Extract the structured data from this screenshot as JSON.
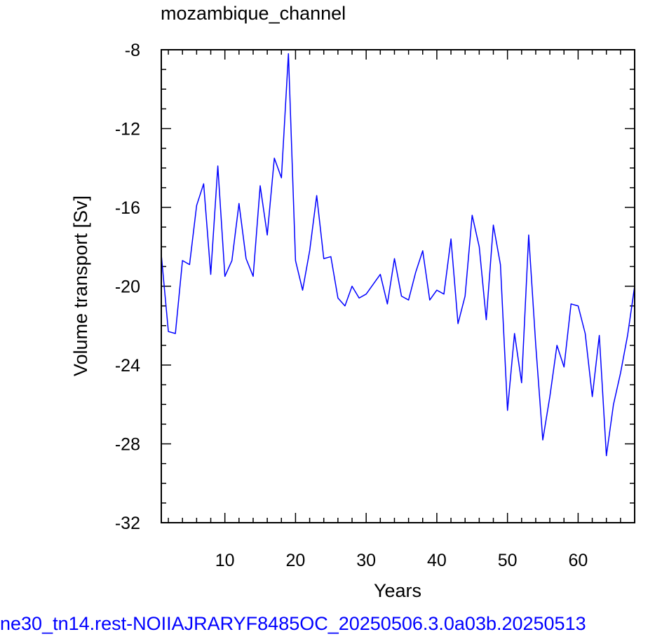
{
  "chart_data": {
    "type": "line",
    "title": "mozambique_channel",
    "xlabel": "Years",
    "ylabel": "Volume transport [Sv]",
    "xlim": [
      1,
      68
    ],
    "ylim": [
      -32,
      -8
    ],
    "x_ticks": [
      10,
      20,
      30,
      40,
      50,
      60
    ],
    "y_ticks": [
      -32,
      -28,
      -24,
      -20,
      -16,
      -12,
      -8
    ],
    "line_color": "#0000ff",
    "grid": false,
    "series": [
      {
        "x": [
          1,
          2,
          3,
          4,
          5,
          6,
          7,
          8,
          9,
          10,
          11,
          12,
          13,
          14,
          15,
          16,
          17,
          18,
          19,
          20,
          21,
          22,
          23,
          24,
          25,
          26,
          27,
          28,
          29,
          30,
          31,
          32,
          33,
          34,
          35,
          36,
          37,
          38,
          39,
          40,
          41,
          42,
          43,
          44,
          45,
          46,
          47,
          48,
          49,
          50,
          51,
          52,
          53,
          54,
          55,
          56,
          57,
          58,
          59,
          60,
          61,
          62,
          63,
          64,
          65,
          66,
          67,
          68
        ],
        "y": [
          -18.4,
          -22.3,
          -22.4,
          -18.7,
          -18.9,
          -15.9,
          -14.8,
          -19.4,
          -13.9,
          -19.5,
          -18.7,
          -15.8,
          -18.6,
          -19.5,
          -14.9,
          -17.4,
          -13.5,
          -14.5,
          -8.2,
          -18.7,
          -20.2,
          -18.2,
          -15.4,
          -18.6,
          -18.5,
          -20.6,
          -21.0,
          -20.0,
          -20.6,
          -20.4,
          -19.9,
          -19.4,
          -20.9,
          -18.6,
          -20.5,
          -20.7,
          -19.3,
          -18.2,
          -20.7,
          -20.2,
          -20.4,
          -17.6,
          -21.9,
          -20.5,
          -16.4,
          -18.0,
          -21.7,
          -16.9,
          -18.9,
          -26.3,
          -22.4,
          -24.9,
          -17.4,
          -23.0,
          -27.8,
          -25.6,
          -23.0,
          -24.1,
          -20.9,
          -21.0,
          -22.4,
          -25.6,
          -22.5,
          -28.6,
          -26.0,
          -24.4,
          -22.5,
          -20.0
        ]
      }
    ]
  },
  "footer": {
    "text": "ne30_tn14.rest-NOIIAJRARYF8485OC_20250506.3.0a03b.20250513",
    "color": "#0000ff"
  }
}
